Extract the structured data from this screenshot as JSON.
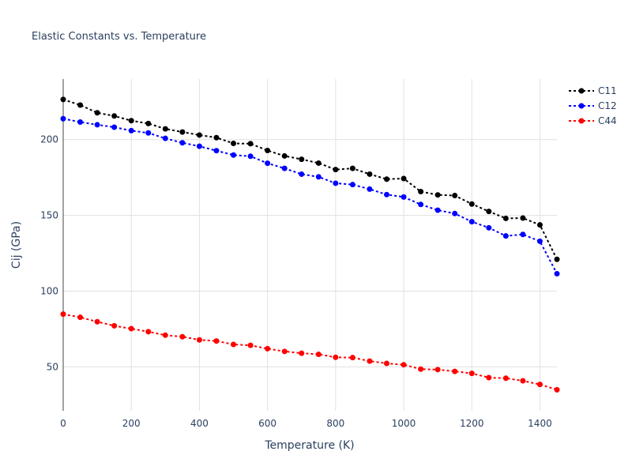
{
  "chart_data": {
    "type": "line",
    "title": "Elastic Constants vs. Temperature",
    "xlabel": "Temperature (K)",
    "ylabel": "Cij (GPa)",
    "xlim": [
      0,
      1450
    ],
    "ylim": [
      21,
      240
    ],
    "xticks": [
      0,
      200,
      400,
      600,
      800,
      1000,
      1200,
      1400
    ],
    "yticks": [
      50,
      100,
      150,
      200
    ],
    "grid": true,
    "legend_position": "top-right",
    "x": [
      0,
      50,
      100,
      150,
      200,
      250,
      300,
      350,
      400,
      450,
      500,
      550,
      600,
      650,
      700,
      750,
      800,
      850,
      900,
      950,
      1000,
      1050,
      1100,
      1150,
      1200,
      1250,
      1300,
      1350,
      1400,
      1450
    ],
    "series": [
      {
        "name": "C11",
        "color": "#000000",
        "values": [
          226.5,
          222.8,
          217.7,
          215.6,
          212.5,
          210.6,
          207.1,
          205.0,
          203.0,
          201.3,
          197.5,
          197.3,
          192.8,
          189.2,
          187.0,
          184.5,
          180.2,
          181.0,
          177.2,
          173.9,
          174.3,
          165.7,
          163.5,
          163.1,
          157.5,
          152.6,
          148.0,
          148.2,
          143.7,
          121.0
        ]
      },
      {
        "name": "C12",
        "color": "#0000ff",
        "values": [
          213.8,
          211.6,
          209.8,
          208.2,
          205.9,
          204.4,
          200.8,
          197.9,
          195.6,
          192.7,
          189.8,
          189.0,
          184.4,
          181.0,
          177.2,
          175.4,
          171.2,
          170.3,
          167.3,
          163.7,
          162.1,
          157.2,
          153.4,
          151.2,
          145.8,
          141.8,
          136.4,
          137.4,
          132.9,
          111.5
        ]
      },
      {
        "name": "C44",
        "color": "#ff0000",
        "values": [
          84.8,
          82.7,
          79.8,
          77.1,
          75.2,
          73.2,
          70.9,
          69.9,
          67.8,
          67.1,
          64.8,
          64.2,
          62.0,
          60.2,
          59.0,
          58.3,
          56.3,
          56.1,
          53.8,
          52.3,
          51.4,
          48.5,
          48.2,
          47.0,
          45.7,
          42.9,
          42.5,
          40.8,
          38.4,
          34.9
        ]
      }
    ]
  }
}
